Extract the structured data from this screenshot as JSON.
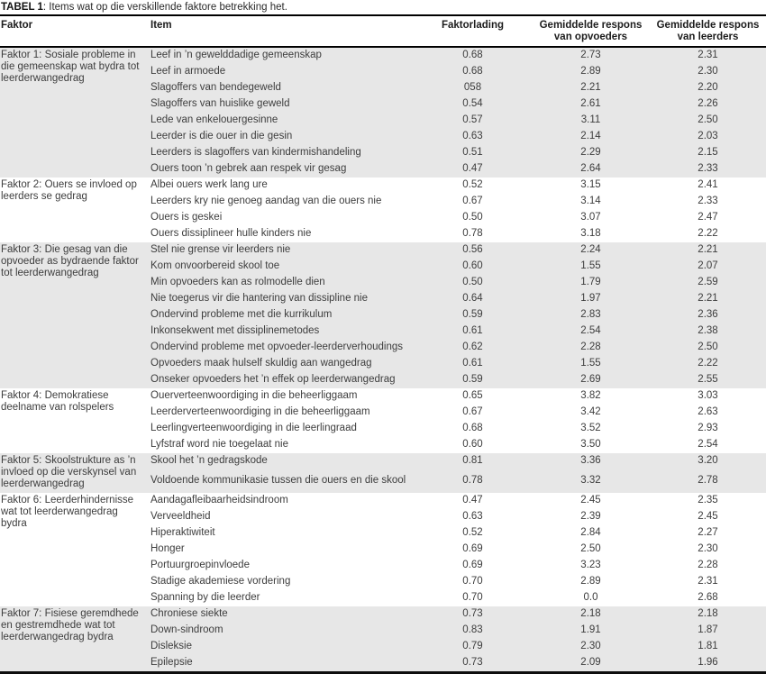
{
  "title": {
    "label": "TABEL 1",
    "rest": ": Items wat op die verskillende faktore betrekking het."
  },
  "table": {
    "columns": [
      "Faktor",
      "Item",
      "Faktorlading",
      "Gemiddelde respons\nvan opvoeders",
      "Gemiddelde respons\nvan leerders"
    ],
    "shading_color": "#e7e7e7",
    "groups": [
      {
        "factor": "Faktor 1: Sosiale probleme in die gemeenskap wat bydra tot leerderwangedrag",
        "shaded": true,
        "rows": [
          {
            "item": "Leef in ’n gewelddadige gemeenskap",
            "lading": "0.68",
            "opvoeders": "2.73",
            "leerders": "2.31"
          },
          {
            "item": "Leef in armoede",
            "lading": "0.68",
            "opvoeders": "2.89",
            "leerders": "2.30"
          },
          {
            "item": "Slagoffers van bendegeweld",
            "lading": "058",
            "opvoeders": "2.21",
            "leerders": "2.20"
          },
          {
            "item": "Slagoffers van huislike geweld",
            "lading": "0.54",
            "opvoeders": "2.61",
            "leerders": "2.26"
          },
          {
            "item": "Lede van enkelouergesinne",
            "lading": "0.57",
            "opvoeders": "3.11",
            "leerders": "2.50"
          },
          {
            "item": "Leerder is die ouer in die gesin",
            "lading": "0.63",
            "opvoeders": "2.14",
            "leerders": "2.03"
          },
          {
            "item": "Leerders is slagoffers van kindermishandeling",
            "lading": "0.51",
            "opvoeders": "2.29",
            "leerders": "2.15"
          },
          {
            "item": "Ouers toon ’n gebrek aan respek vir gesag",
            "lading": "0.47",
            "opvoeders": "2.64",
            "leerders": "2.33"
          }
        ]
      },
      {
        "factor": "Faktor 2: Ouers se invloed op leerders se gedrag",
        "shaded": false,
        "rows": [
          {
            "item": "Albei ouers werk lang ure",
            "lading": "0.52",
            "opvoeders": "3.15",
            "leerders": "2.41"
          },
          {
            "item": "Leerders kry nie genoeg aandag van die ouers nie",
            "lading": "0.67",
            "opvoeders": "3.14",
            "leerders": "2.33"
          },
          {
            "item": "Ouers is geskei",
            "lading": "0.50",
            "opvoeders": "3.07",
            "leerders": "2.47"
          },
          {
            "item": "Ouers dissiplineer hulle kinders nie",
            "lading": "0.78",
            "opvoeders": "3.18",
            "leerders": "2.22"
          }
        ]
      },
      {
        "factor": "Faktor 3: Die gesag van die opvoeder as bydraende faktor tot leerderwangedrag",
        "shaded": true,
        "rows": [
          {
            "item": "Stel nie grense vir leerders nie",
            "lading": "0.56",
            "opvoeders": "2.24",
            "leerders": "2.21"
          },
          {
            "item": "Kom onvoorbereid skool toe",
            "lading": "0.60",
            "opvoeders": "1.55",
            "leerders": "2.07"
          },
          {
            "item": "Min opvoeders kan as rolmodelle dien",
            "lading": "0.50",
            "opvoeders": "1.79",
            "leerders": "2.59"
          },
          {
            "item": "Nie toegerus vir die hantering van dissipline nie",
            "lading": "0.64",
            "opvoeders": "1.97",
            "leerders": "2.21"
          },
          {
            "item": "Ondervind probleme met die kurrikulum",
            "lading": "0.59",
            "opvoeders": "2.83",
            "leerders": "2.36"
          },
          {
            "item": "Inkonsekwent met dissiplinemetodes",
            "lading": "0.61",
            "opvoeders": "2.54",
            "leerders": "2.38"
          },
          {
            "item": "Ondervind probleme met opvoeder-leerderverhoudings",
            "lading": "0.62",
            "opvoeders": "2.28",
            "leerders": "2.50"
          },
          {
            "item": "Opvoeders maak hulself skuldig aan wangedrag",
            "lading": "0.61",
            "opvoeders": "1.55",
            "leerders": "2.22"
          },
          {
            "item": "Onseker opvoeders het ’n effek op leerderwangedrag",
            "lading": "0.59",
            "opvoeders": "2.69",
            "leerders": "2.55"
          }
        ]
      },
      {
        "factor": "Faktor 4: Demokratiese deelname van rolspelers",
        "shaded": false,
        "rows": [
          {
            "item": "Ouerverteenwoordiging in die beheerliggaam",
            "lading": "0.65",
            "opvoeders": "3.82",
            "leerders": "3.03"
          },
          {
            "item": "Leerderverteenwoordiging in die beheerliggaam",
            "lading": "0.67",
            "opvoeders": "3.42",
            "leerders": "2.63"
          },
          {
            "item": "Leerlingverteenwoordiging in die leerlingraad",
            "lading": "0.68",
            "opvoeders": "3.52",
            "leerders": "2.93"
          },
          {
            "item": "Lyfstraf word nie toegelaat nie",
            "lading": "0.60",
            "opvoeders": "3.50",
            "leerders": "2.54"
          }
        ]
      },
      {
        "factor": "Faktor 5: Skoolstrukture as ’n invloed op die verskynsel van leerderwangedrag",
        "shaded": true,
        "rows": [
          {
            "item": "Skool het ’n gedragskode",
            "lading": "0.81",
            "opvoeders": "3.36",
            "leerders": "3.20"
          },
          {
            "item": "Voldoende kommunikasie tussen die ouers en die skool",
            "lading": "0.78",
            "opvoeders": "3.32",
            "leerders": "2.78"
          }
        ]
      },
      {
        "factor": "Faktor 6: Leerderhindernisse wat tot leerderwangedrag bydra",
        "shaded": false,
        "rows": [
          {
            "item": "Aandagafleibaarheidsindroom",
            "lading": "0.47",
            "opvoeders": "2.45",
            "leerders": "2.35"
          },
          {
            "item": "Verveeldheid",
            "lading": "0.63",
            "opvoeders": "2.39",
            "leerders": "2.45"
          },
          {
            "item": "Hiperaktiwiteit",
            "lading": "0.52",
            "opvoeders": "2.84",
            "leerders": "2.27"
          },
          {
            "item": "Honger",
            "lading": "0.69",
            "opvoeders": "2.50",
            "leerders": "2.30"
          },
          {
            "item": "Portuurgroepinvloede",
            "lading": "0.69",
            "opvoeders": "3.23",
            "leerders": "2.28"
          },
          {
            "item": "Stadige akademiese vordering",
            "lading": "0.70",
            "opvoeders": "2.89",
            "leerders": "2.31"
          },
          {
            "item": "Spanning by die leerder",
            "lading": "0.70",
            "opvoeders": "0.0",
            "leerders": "2.68"
          }
        ]
      },
      {
        "factor": "Faktor 7: Fisiese geremdhede en gestremdhede wat tot leerderwangedrag bydra",
        "shaded": true,
        "rows": [
          {
            "item": "Chroniese siekte",
            "lading": "0.73",
            "opvoeders": "2.18",
            "leerders": "2.18"
          },
          {
            "item": "Down-sindroom",
            "lading": "0.83",
            "opvoeders": "1.91",
            "leerders": "1.87"
          },
          {
            "item": "Disleksie",
            "lading": "0.79",
            "opvoeders": "2.30",
            "leerders": "1.81"
          },
          {
            "item": "Epilepsie",
            "lading": "0.73",
            "opvoeders": "2.09",
            "leerders": "1.96"
          }
        ]
      }
    ]
  }
}
